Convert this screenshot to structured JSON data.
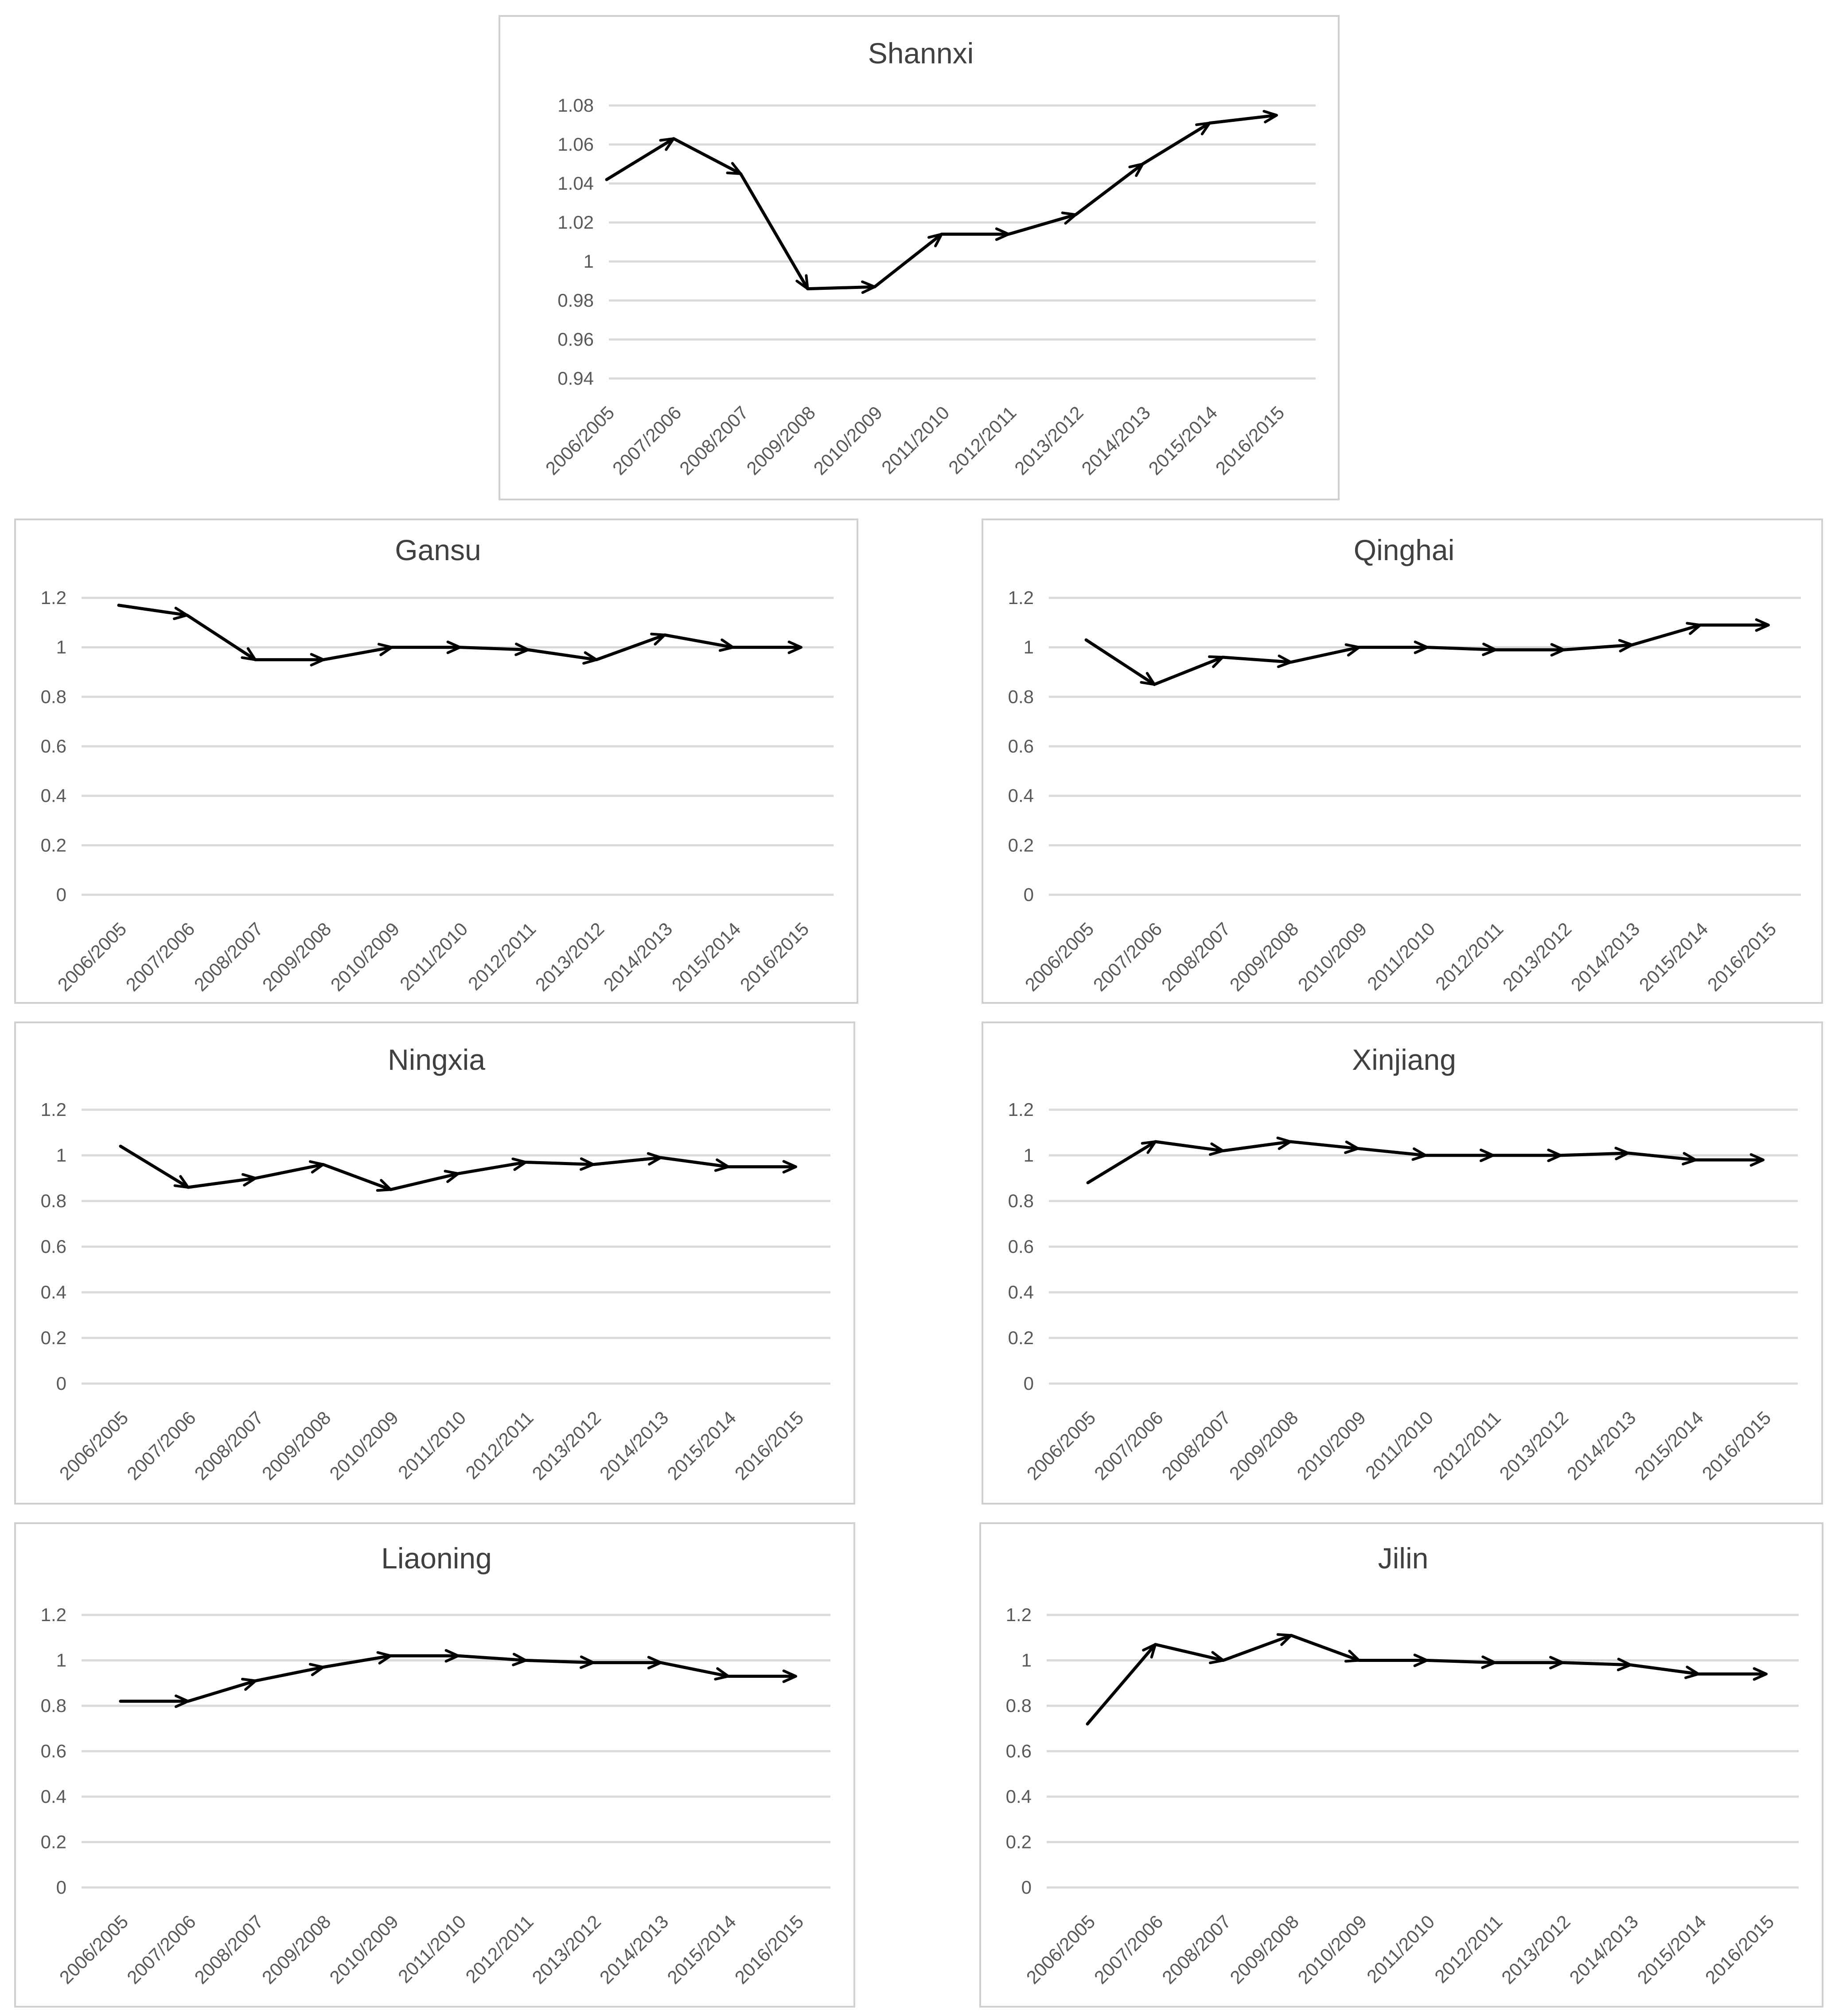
{
  "colors": {
    "grid": "#d9d9d9",
    "line": "#000000",
    "text": "#595959",
    "border": "#cfcfcf"
  },
  "chart_data": [
    {
      "type": "line",
      "title": "Shannxi",
      "categories": [
        "2006/2005",
        "2007/2006",
        "2008/2007",
        "2009/2008",
        "2010/2009",
        "2011/2010",
        "2012/2011",
        "2013/2012",
        "2014/2013",
        "2015/2014",
        "2016/2015"
      ],
      "yticks": [
        "0.94",
        "0.96",
        "0.98",
        "1",
        "1.02",
        "1.04",
        "1.06",
        "1.08"
      ],
      "ylim": [
        0.94,
        1.08
      ],
      "series": [
        {
          "name": "Shannxi",
          "values": [
            1.042,
            1.063,
            1.045,
            0.986,
            0.987,
            1.014,
            1.014,
            1.024,
            1.05,
            1.071,
            1.075
          ]
        }
      ],
      "xlabel": "",
      "ylabel": "",
      "marker": "arrow"
    },
    {
      "type": "line",
      "title": "Gansu",
      "categories": [
        "2006/2005",
        "2007/2006",
        "2008/2007",
        "2009/2008",
        "2010/2009",
        "2011/2010",
        "2012/2011",
        "2013/2012",
        "2014/2013",
        "2015/2014",
        "2016/2015"
      ],
      "yticks": [
        "0",
        "0.2",
        "0.4",
        "0.6",
        "0.8",
        "1",
        "1.2"
      ],
      "ylim": [
        0,
        1.2
      ],
      "series": [
        {
          "name": "Gansu",
          "values": [
            1.17,
            1.13,
            0.95,
            0.95,
            1.0,
            1.0,
            0.99,
            0.95,
            1.05,
            1.0,
            1.0
          ]
        }
      ],
      "xlabel": "",
      "ylabel": "",
      "marker": "arrow"
    },
    {
      "type": "line",
      "title": "Qinghai",
      "categories": [
        "2006/2005",
        "2007/2006",
        "2008/2007",
        "2009/2008",
        "2010/2009",
        "2011/2010",
        "2012/2011",
        "2013/2012",
        "2014/2013",
        "2015/2014",
        "2016/2015"
      ],
      "yticks": [
        "0",
        "0.2",
        "0.4",
        "0.6",
        "0.8",
        "1",
        "1.2"
      ],
      "ylim": [
        0,
        1.2
      ],
      "series": [
        {
          "name": "Qinghai",
          "values": [
            1.03,
            0.85,
            0.96,
            0.94,
            1.0,
            1.0,
            0.99,
            0.99,
            1.01,
            1.09,
            1.09
          ]
        }
      ],
      "xlabel": "",
      "ylabel": "",
      "marker": "arrow"
    },
    {
      "type": "line",
      "title": "Ningxia",
      "categories": [
        "2006/2005",
        "2007/2006",
        "2008/2007",
        "2009/2008",
        "2010/2009",
        "2011/2010",
        "2012/2011",
        "2013/2012",
        "2014/2013",
        "2015/2014",
        "2016/2015"
      ],
      "yticks": [
        "0",
        "0.2",
        "0.4",
        "0.6",
        "0.8",
        "1",
        "1.2"
      ],
      "ylim": [
        0,
        1.2
      ],
      "series": [
        {
          "name": "Ningxia",
          "values": [
            1.04,
            0.86,
            0.9,
            0.96,
            0.85,
            0.92,
            0.97,
            0.96,
            0.99,
            0.95,
            0.95
          ]
        }
      ],
      "xlabel": "",
      "ylabel": "",
      "marker": "arrow"
    },
    {
      "type": "line",
      "title": "Xinjiang",
      "categories": [
        "2006/2005",
        "2007/2006",
        "2008/2007",
        "2009/2008",
        "2010/2009",
        "2011/2010",
        "2012/2011",
        "2013/2012",
        "2014/2013",
        "2015/2014",
        "2016/2015"
      ],
      "yticks": [
        "0",
        "0.2",
        "0.4",
        "0.6",
        "0.8",
        "1",
        "1.2"
      ],
      "ylim": [
        0,
        1.2
      ],
      "series": [
        {
          "name": "Xinjiang",
          "values": [
            0.88,
            1.06,
            1.02,
            1.06,
            1.03,
            1.0,
            1.0,
            1.0,
            1.01,
            0.98,
            0.98
          ]
        }
      ],
      "xlabel": "",
      "ylabel": "",
      "marker": "arrow"
    },
    {
      "type": "line",
      "title": "Liaoning",
      "categories": [
        "2006/2005",
        "2007/2006",
        "2008/2007",
        "2009/2008",
        "2010/2009",
        "2011/2010",
        "2012/2011",
        "2013/2012",
        "2014/2013",
        "2015/2014",
        "2016/2015"
      ],
      "yticks": [
        "0",
        "0.2",
        "0.4",
        "0.6",
        "0.8",
        "1",
        "1.2"
      ],
      "ylim": [
        0,
        1.2
      ],
      "series": [
        {
          "name": "Liaoning",
          "values": [
            0.82,
            0.82,
            0.91,
            0.97,
            1.02,
            1.02,
            1.0,
            0.99,
            0.99,
            0.93,
            0.93
          ]
        }
      ],
      "xlabel": "",
      "ylabel": "",
      "marker": "arrow"
    },
    {
      "type": "line",
      "title": "Jilin",
      "categories": [
        "2006/2005",
        "2007/2006",
        "2008/2007",
        "2009/2008",
        "2010/2009",
        "2011/2010",
        "2012/2011",
        "2013/2012",
        "2014/2013",
        "2015/2014",
        "2016/2015"
      ],
      "yticks": [
        "0",
        "0.2",
        "0.4",
        "0.6",
        "0.8",
        "1",
        "1.2"
      ],
      "ylim": [
        0,
        1.2
      ],
      "series": [
        {
          "name": "Jilin",
          "values": [
            0.72,
            1.07,
            1.0,
            1.11,
            1.0,
            1.0,
            0.99,
            0.99,
            0.98,
            0.94,
            0.94
          ]
        }
      ],
      "xlabel": "",
      "ylabel": "",
      "marker": "arrow"
    }
  ]
}
